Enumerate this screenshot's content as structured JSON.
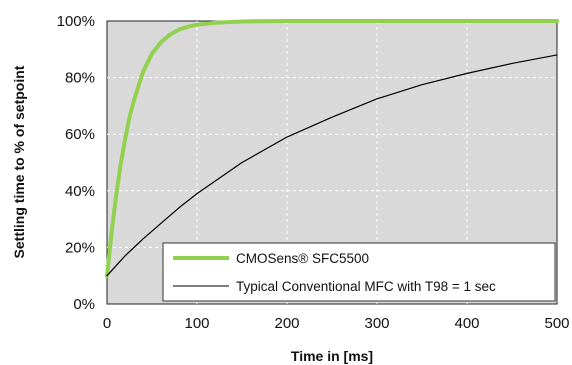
{
  "chart_data": {
    "type": "line",
    "title": "",
    "xlabel": "Time in [ms]",
    "ylabel": "Settling time to % of setpoint",
    "xlim": [
      0,
      500
    ],
    "ylim": [
      0,
      100
    ],
    "x_ticks": [
      0,
      100,
      200,
      300,
      400,
      500
    ],
    "y_ticks": [
      0,
      20,
      40,
      60,
      80,
      100
    ],
    "x_tick_labels": [
      "0",
      "100",
      "200",
      "300",
      "400",
      "500"
    ],
    "y_tick_labels": [
      "0%",
      "20%",
      "40%",
      "60%",
      "80%",
      "100%"
    ],
    "grid": true,
    "legend_position": "bottom-right",
    "series": [
      {
        "name": "CMOSens® SFC5500",
        "color": "#92d050",
        "x": [
          0,
          5,
          10,
          15,
          20,
          25,
          30,
          40,
          50,
          60,
          70,
          80,
          90,
          100,
          120,
          140,
          160,
          200,
          250,
          300,
          350,
          400,
          450,
          500
        ],
        "y": [
          10,
          25,
          38,
          49,
          58,
          66,
          72,
          82,
          88.5,
          92.5,
          95.2,
          97,
          98,
          98.7,
          99.4,
          99.7,
          99.9,
          100,
          100,
          100,
          100,
          100,
          100,
          100
        ]
      },
      {
        "name": "Typical Conventional MFC with T98 = 1 sec",
        "color": "#000000",
        "x": [
          0,
          10,
          20,
          40,
          60,
          80,
          100,
          150,
          200,
          250,
          300,
          350,
          400,
          450,
          500
        ],
        "y": [
          10,
          13.5,
          17,
          23,
          28.5,
          34,
          39,
          50,
          59,
          66,
          72.5,
          77.5,
          81.5,
          85,
          88
        ]
      }
    ]
  }
}
